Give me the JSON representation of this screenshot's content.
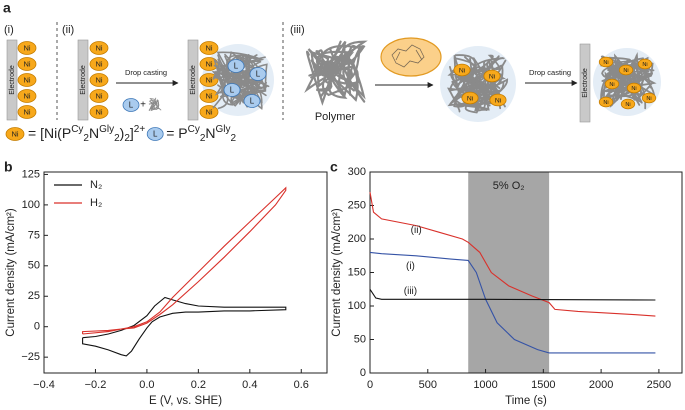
{
  "panel_a": {
    "label": "a",
    "steps": [
      "(i)",
      "(ii)",
      "(iii)"
    ],
    "electrode": "Electrode",
    "ni": "Ni",
    "ligand": "L",
    "drop_casting": "Drop casting",
    "polymer": "Polymer",
    "ni_formula": [
      "= [Ni(P",
      "Cy",
      "2",
      "N",
      "Gly",
      "2",
      ")",
      "2",
      "]",
      "2+"
    ],
    "l_formula": [
      "= P",
      "Cy",
      "2",
      "N",
      "Gly",
      "2"
    ]
  },
  "chart_data": [
    {
      "type": "line",
      "panel": "b",
      "x_label": "E (V, vs. SHE)",
      "y_label": "Current density (mA/cm²)",
      "xlim": [
        -0.4,
        0.7
      ],
      "ylim": [
        -38,
        127
      ],
      "xticks": [
        {
          "value": -0.4,
          "label": "−0.4"
        },
        {
          "value": -0.2,
          "label": "−0.2"
        },
        {
          "value": 0,
          "label": "0.0"
        },
        0.2,
        0.4,
        0.6
      ],
      "yticks": [
        {
          "value": -25,
          "label": "−25"
        },
        0,
        25,
        50,
        75,
        100,
        125
      ],
      "legend": "upper left",
      "series": [
        {
          "name": "N₂",
          "color": "#111111",
          "x": [
            -0.25,
            -0.2,
            -0.15,
            -0.1,
            -0.05,
            0,
            0.03,
            0.07,
            0.1,
            0.15,
            0.2,
            0.3,
            0.4,
            0.54,
            0.54,
            0.4,
            0.3,
            0.2,
            0.15,
            0.1,
            0.05,
            0.02,
            0,
            -0.03,
            -0.06,
            -0.08,
            -0.1,
            -0.15,
            -0.2,
            -0.25,
            -0.25
          ],
          "values": [
            -9,
            -8,
            -6,
            -3,
            1,
            9,
            17,
            24,
            22,
            19,
            17,
            16,
            16,
            16,
            14,
            13,
            13,
            12,
            12,
            11,
            8,
            4,
            -1,
            -10,
            -20,
            -24,
            -23,
            -19,
            -16,
            -14,
            -9
          ]
        },
        {
          "name": "H₂",
          "color": "#d9312b",
          "x": [
            -0.25,
            -0.15,
            -0.1,
            -0.05,
            0,
            0.05,
            0.1,
            0.2,
            0.3,
            0.4,
            0.5,
            0.54,
            0.54,
            0.5,
            0.4,
            0.3,
            0.2,
            0.1,
            0.05,
            0,
            -0.05,
            -0.1,
            -0.15,
            -0.25,
            -0.25
          ],
          "values": [
            -6,
            -4,
            -2,
            0,
            4,
            12,
            24,
            45,
            66,
            86,
            106,
            114,
            112,
            100,
            78,
            57,
            37,
            18,
            10,
            3,
            -1,
            -2,
            -3,
            -4,
            -6
          ]
        }
      ]
    },
    {
      "type": "line",
      "panel": "c",
      "x_label": "Time (s)",
      "y_label": "Current density (mA/cm²)",
      "xlim": [
        0,
        2700
      ],
      "ylim": [
        0,
        300
      ],
      "xticks": [
        0,
        500,
        1000,
        1500,
        2000,
        2500
      ],
      "yticks": [
        0,
        50,
        100,
        150,
        200,
        250,
        300
      ],
      "shaded_region": {
        "x": [
          850,
          1550
        ],
        "color": "#a6a6a6",
        "label": "5% O₂"
      },
      "annotations": [
        "(ii)",
        "(i)",
        "(iii)"
      ],
      "series": [
        {
          "color": "#d9312b",
          "x": [
            0,
            30,
            100,
            400,
            600,
            800,
            850,
            950,
            1050,
            1200,
            1400,
            1550,
            1600,
            1800,
            2000,
            2300,
            2470
          ],
          "values": [
            270,
            240,
            230,
            220,
            210,
            200,
            195,
            180,
            150,
            130,
            115,
            105,
            95,
            92,
            90,
            87,
            85
          ]
        },
        {
          "color": "#3553a6",
          "x": [
            0,
            100,
            400,
            700,
            850,
            920,
            1000,
            1100,
            1250,
            1450,
            1550,
            2000,
            2470
          ],
          "values": [
            180,
            178,
            175,
            170,
            168,
            150,
            110,
            75,
            50,
            35,
            30,
            30,
            30
          ]
        },
        {
          "color": "#111111",
          "x": [
            0,
            50,
            100,
            1000,
            2470
          ],
          "values": [
            125,
            112,
            110,
            110,
            109
          ]
        }
      ]
    }
  ]
}
